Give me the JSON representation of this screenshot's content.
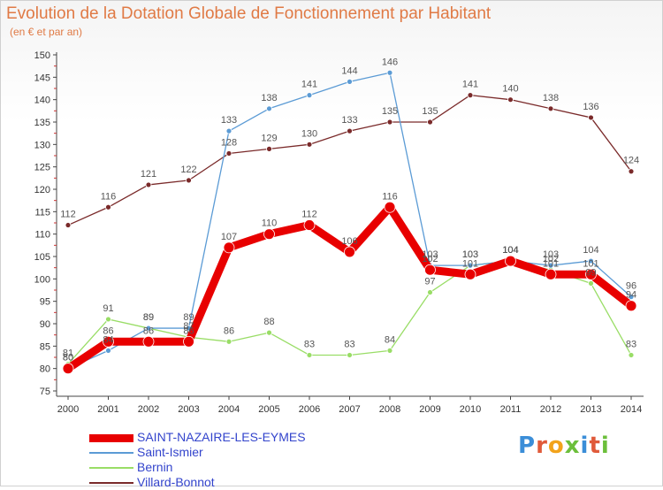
{
  "chart_data": {
    "type": "line",
    "title": "Evolution de la Dotation Globale de Fonctionnement par Habitant",
    "subtitle": "(en € et par an)",
    "x": [
      "2000",
      "2001",
      "2002",
      "2003",
      "2004",
      "2005",
      "2006",
      "2007",
      "2008",
      "2009",
      "2010",
      "2011",
      "2012",
      "2013",
      "2014"
    ],
    "ylim": [
      75,
      150
    ],
    "yticks": [
      75,
      80,
      85,
      90,
      95,
      100,
      105,
      110,
      115,
      120,
      125,
      130,
      135,
      140,
      145,
      150
    ],
    "grid": false,
    "legend_position": "bottom-left",
    "series": [
      {
        "name": "SAINT-NAZAIRE-LES-EYMES",
        "color": "#e80000",
        "values": [
          80,
          86,
          86,
          86,
          107,
          110,
          112,
          106,
          116,
          102,
          101,
          104,
          101,
          101,
          94
        ]
      },
      {
        "name": "Saint-Ismier",
        "color": "#5b9bd5",
        "values": [
          80,
          84,
          89,
          89,
          133,
          138,
          141,
          144,
          146,
          103,
          103,
          104,
          103,
          104,
          96
        ]
      },
      {
        "name": "Bernin",
        "color": "#99dd66",
        "values": [
          81,
          91,
          89,
          87,
          86,
          88,
          83,
          83,
          84,
          97,
          103,
          104,
          102,
          99,
          83
        ]
      },
      {
        "name": "Villard-Bonnot",
        "color": "#7a2a2a",
        "values": [
          112,
          116,
          121,
          122,
          128,
          129,
          130,
          133,
          135,
          135,
          141,
          140,
          138,
          136,
          124
        ]
      }
    ]
  },
  "logo": {
    "text": "Proxiti"
  }
}
